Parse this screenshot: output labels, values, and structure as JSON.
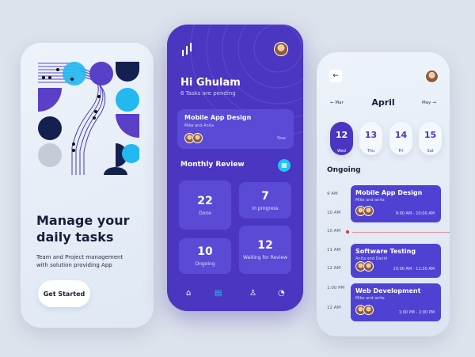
{
  "onboarding": {
    "title_line1": "Manage your",
    "title_line2": "daily tasks",
    "subtitle": "Team and Project management with solution providing App",
    "cta": "Get Started"
  },
  "home": {
    "greeting": "Hi Ghulam",
    "pending": "6 Tasks are pending",
    "featured": {
      "title": "Mobile App Design",
      "people": "Mike and Anita",
      "time": "Now"
    },
    "section": "Monthly Review",
    "stats": [
      {
        "value": "22",
        "label": "Done"
      },
      {
        "value": "7",
        "label": "In progress"
      },
      {
        "value": "10",
        "label": "Ongoing"
      },
      {
        "value": "12",
        "label": "Waiting for Review"
      }
    ],
    "nav": [
      "home-icon",
      "document-icon",
      "profile-icon",
      "bell-icon"
    ],
    "accent": "#4a36c0",
    "active_nav": "#22c4f0"
  },
  "schedule": {
    "prev_month": "Mar",
    "month": "April",
    "next_month": "May",
    "days": [
      {
        "num": "12",
        "day": "Wed",
        "selected": true
      },
      {
        "num": "13",
        "day": "Thu"
      },
      {
        "num": "14",
        "day": "Fri"
      },
      {
        "num": "15",
        "day": "Sat"
      }
    ],
    "section": "Ongoing",
    "times": [
      "9 AM",
      "10 AM",
      "10 AM",
      "11 AM",
      "12 AM",
      "1:00 PM",
      "12 AM"
    ],
    "events": [
      {
        "title": "Mobile App Design",
        "people": "Mike and anita",
        "time": "9:00 AM - 10:00 AM"
      },
      {
        "title": "Software Testing",
        "people": "Anita and David",
        "time": "10:00 AM - 11:20 AM"
      },
      {
        "title": "Web Development",
        "people": "Mike and anita",
        "time": "1:00 PM - 2:00 PM"
      }
    ]
  }
}
